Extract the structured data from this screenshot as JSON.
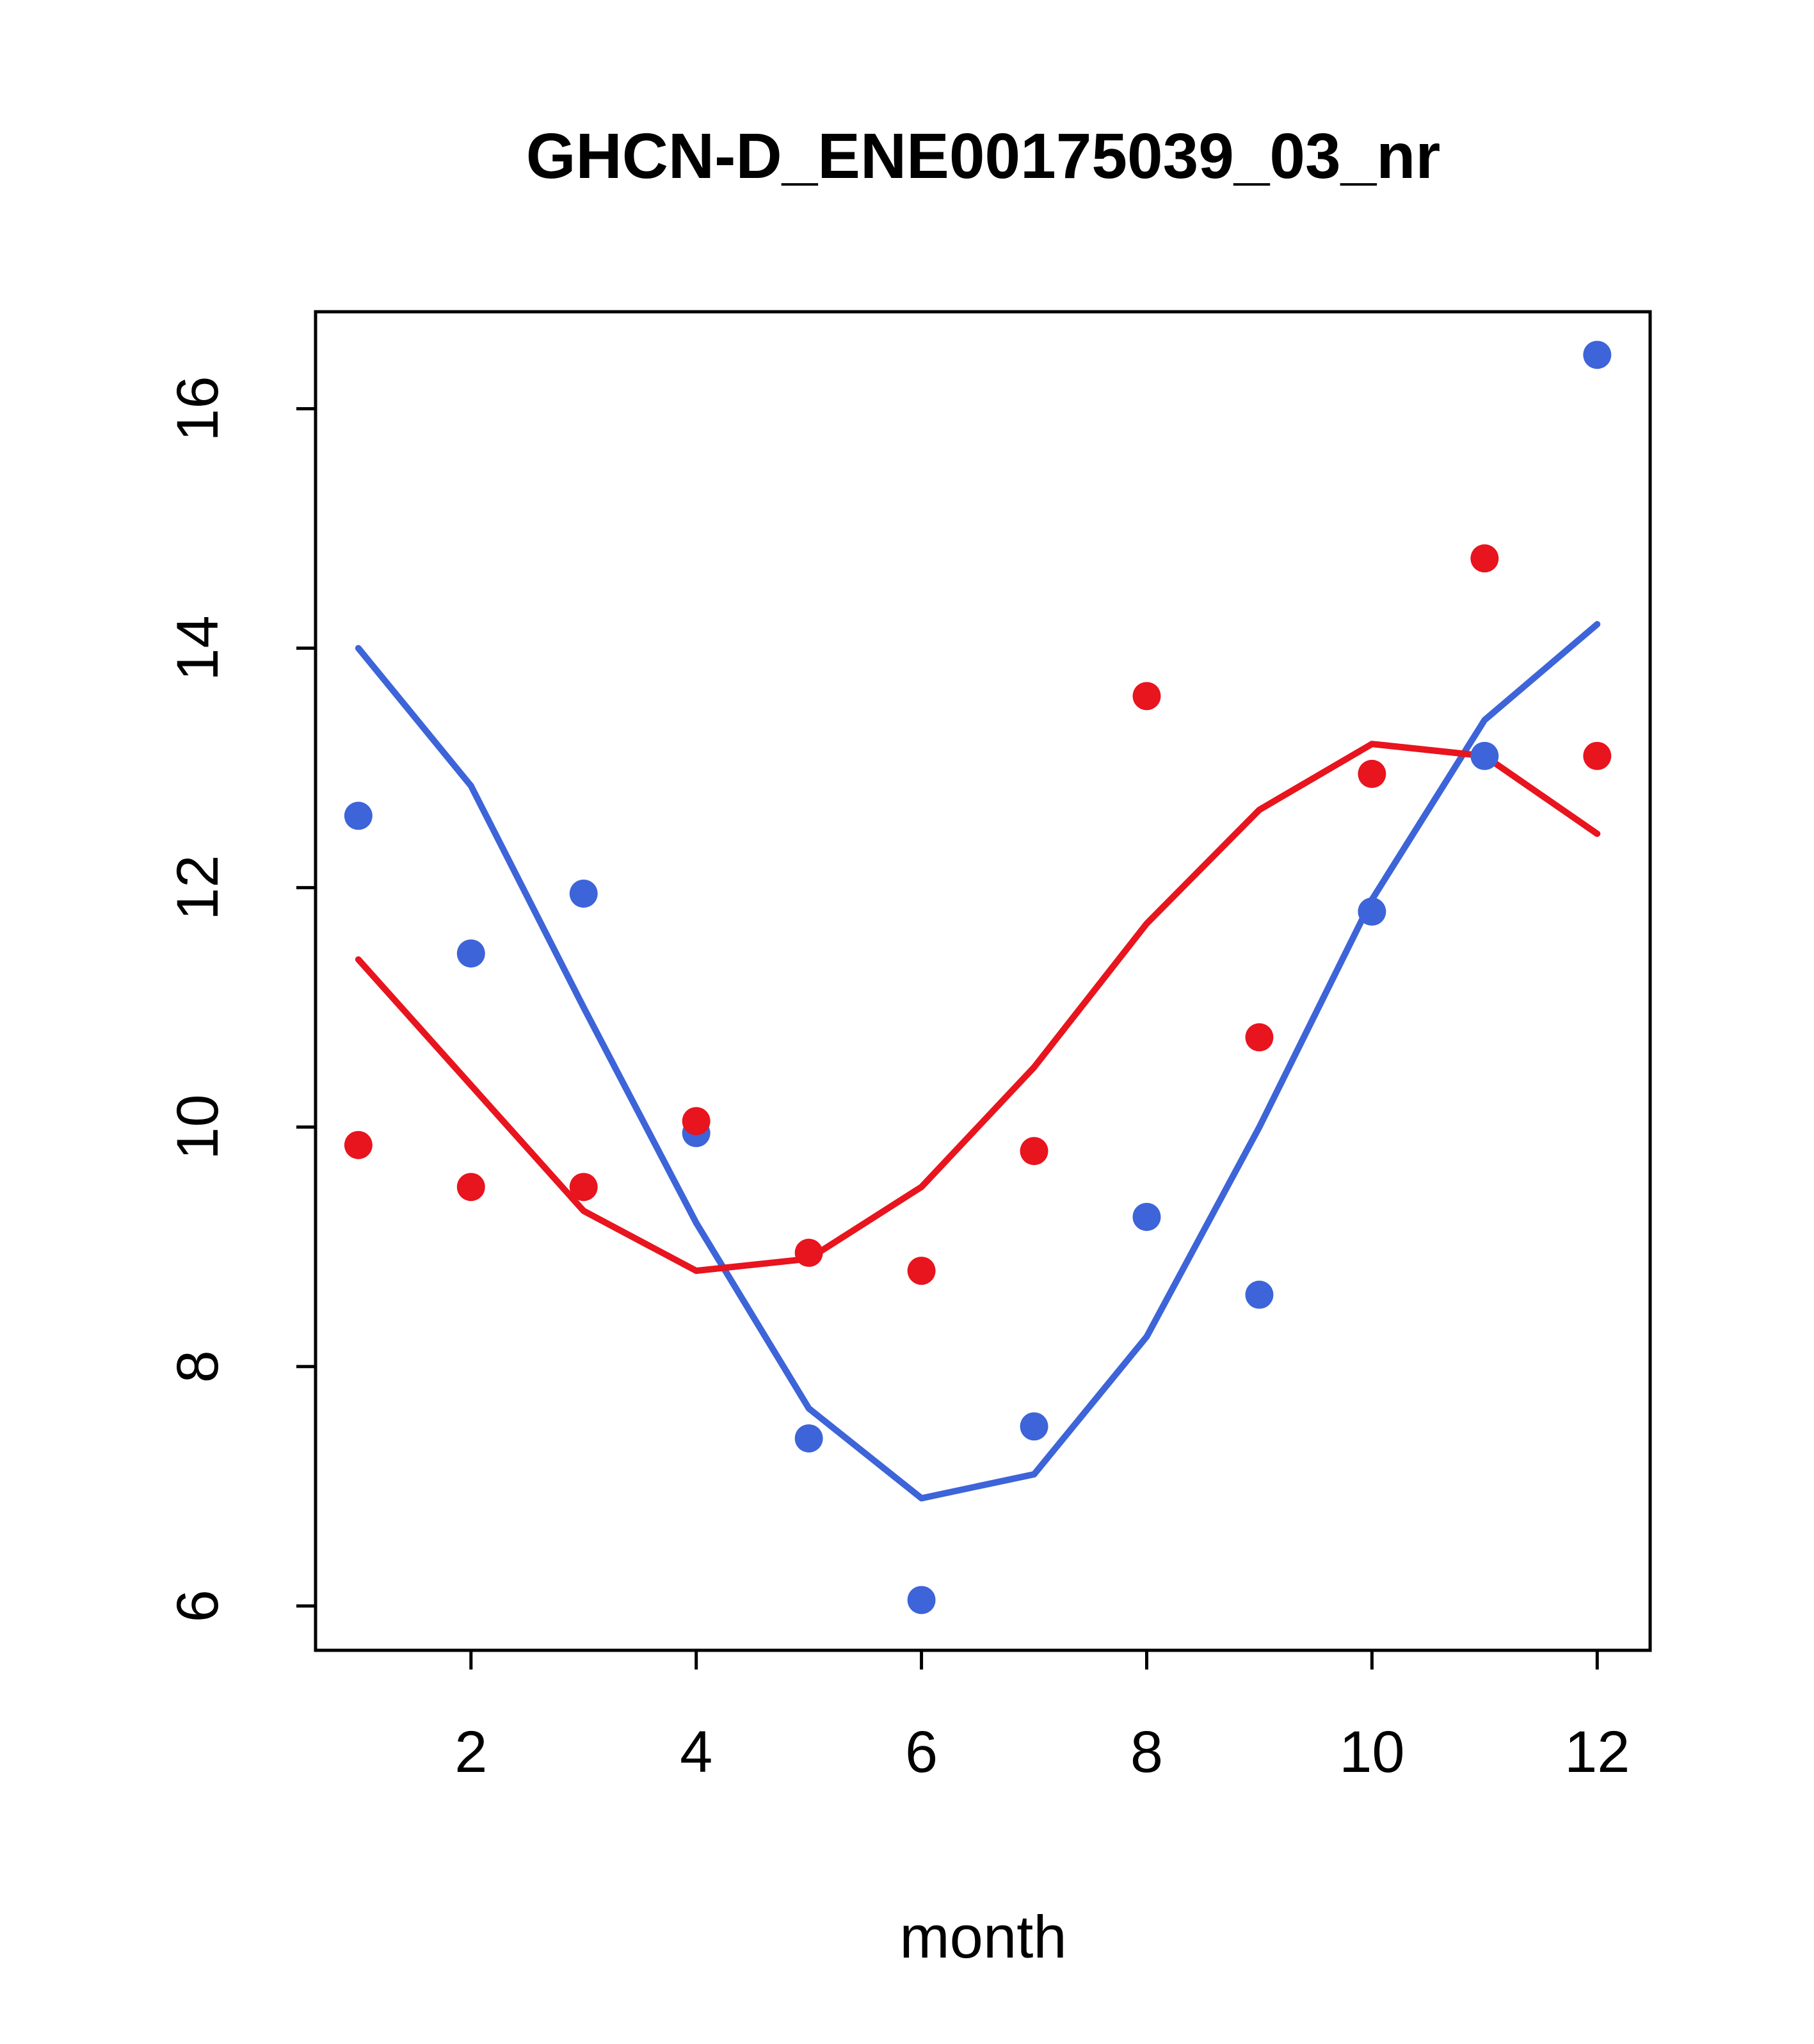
{
  "chart_data": {
    "type": "scatter",
    "title": "GHCN-D_ENE00175039_03_nr",
    "xlabel": "month",
    "ylabel": "",
    "xlim": [
      0.62,
      12.47
    ],
    "ylim": [
      5.63,
      16.81
    ],
    "x_ticks": [
      2,
      4,
      6,
      8,
      10,
      12
    ],
    "y_ticks": [
      6,
      8,
      10,
      12,
      14,
      16
    ],
    "grid": false,
    "legend": "none",
    "x": [
      1,
      2,
      3,
      4,
      5,
      6,
      7,
      8,
      9,
      10,
      11,
      12
    ],
    "series": [
      {
        "name": "blue-points",
        "style": "points",
        "color": "#3d64d8",
        "values": [
          12.6,
          11.45,
          11.95,
          9.95,
          7.4,
          6.05,
          7.5,
          9.25,
          8.6,
          11.8,
          13.1,
          16.45
        ]
      },
      {
        "name": "red-points",
        "style": "points",
        "color": "#e8141e",
        "values": [
          9.85,
          9.5,
          9.5,
          10.05,
          8.95,
          8.8,
          9.8,
          13.6,
          10.75,
          12.95,
          14.75,
          13.1
        ]
      },
      {
        "name": "blue-smooth-line",
        "style": "line",
        "color": "#3d64d8",
        "values": [
          14.0,
          12.85,
          11.0,
          9.2,
          7.65,
          6.9,
          7.1,
          8.25,
          10.0,
          11.9,
          13.4,
          14.2
        ]
      },
      {
        "name": "red-smooth-line",
        "style": "line",
        "color": "#e8141e",
        "values": [
          11.4,
          10.35,
          9.3,
          8.8,
          8.9,
          9.5,
          10.5,
          11.7,
          12.65,
          13.2,
          13.1,
          12.45
        ]
      }
    ],
    "colors": {
      "blue": "#3d64d8",
      "red": "#e8141e",
      "axis": "#000000",
      "background": "#ffffff"
    }
  }
}
